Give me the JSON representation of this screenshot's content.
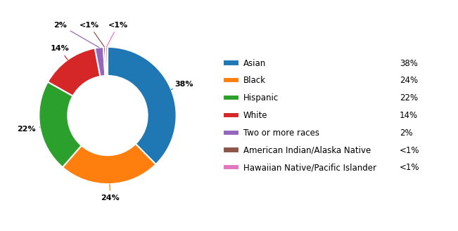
{
  "chart_data": {
    "type": "pie",
    "categories": [
      "Asian",
      "Black",
      "Hispanic",
      "White",
      "Two or more races",
      "American Indian/Alaska Native",
      "Hawaiian Native/Pacific Islander"
    ],
    "values": [
      38,
      24,
      22,
      14,
      2,
      0.5,
      0.5
    ],
    "value_labels": [
      "38%",
      "24%",
      "22%",
      "14%",
      "2%",
      "<1%",
      "<1%"
    ],
    "data_labels": true,
    "legend": "center left"
  }
}
